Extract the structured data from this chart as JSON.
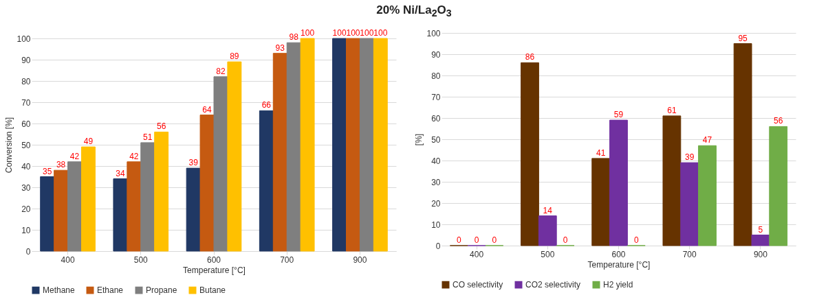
{
  "chart_data": [
    {
      "type": "bar",
      "title": "20% Ni/La$_{2}$O$_{3}$",
      "xlabel": "Temperature [°C]",
      "ylabel": "Conversion [%]",
      "categories": [
        "400",
        "500",
        "600",
        "700",
        "900"
      ],
      "series": [
        {
          "name": "Methane",
          "color": "#203864",
          "values": [
            35,
            34,
            39,
            66,
            100
          ]
        },
        {
          "name": "Ethane",
          "color": "#c55a11",
          "values": [
            38,
            42,
            64,
            93,
            100
          ]
        },
        {
          "name": "Propane",
          "color": "#7f7f7f",
          "values": [
            42,
            51,
            82,
            98,
            100
          ]
        },
        {
          "name": "Butane",
          "color": "#ffc000",
          "values": [
            49,
            56,
            89,
            100,
            100
          ]
        }
      ],
      "ylim": [
        0,
        100
      ],
      "yticks": [
        0,
        10,
        20,
        30,
        40,
        50,
        60,
        70,
        80,
        90,
        100
      ],
      "grid": "y",
      "legend": "bottom",
      "data_labels": true
    },
    {
      "type": "bar",
      "xlabel": "Temperature [°C]",
      "ylabel": "[%]",
      "categories": [
        "400",
        "500",
        "600",
        "700",
        "900"
      ],
      "series": [
        {
          "name": "CO selectivity",
          "color": "#663300",
          "values": [
            0,
            86,
            41,
            61,
            95
          ]
        },
        {
          "name": "CO2 selectivity",
          "color": "#7030a0",
          "values": [
            0,
            14,
            59,
            39,
            5
          ]
        },
        {
          "name": "H2 yield",
          "color": "#70ad47",
          "values": [
            0,
            0,
            0,
            47,
            56
          ]
        }
      ],
      "ylim": [
        0,
        100
      ],
      "yticks": [
        0,
        10,
        20,
        30,
        40,
        50,
        60,
        70,
        80,
        90,
        100
      ],
      "grid": "y",
      "legend": "bottom",
      "data_labels": true
    }
  ]
}
